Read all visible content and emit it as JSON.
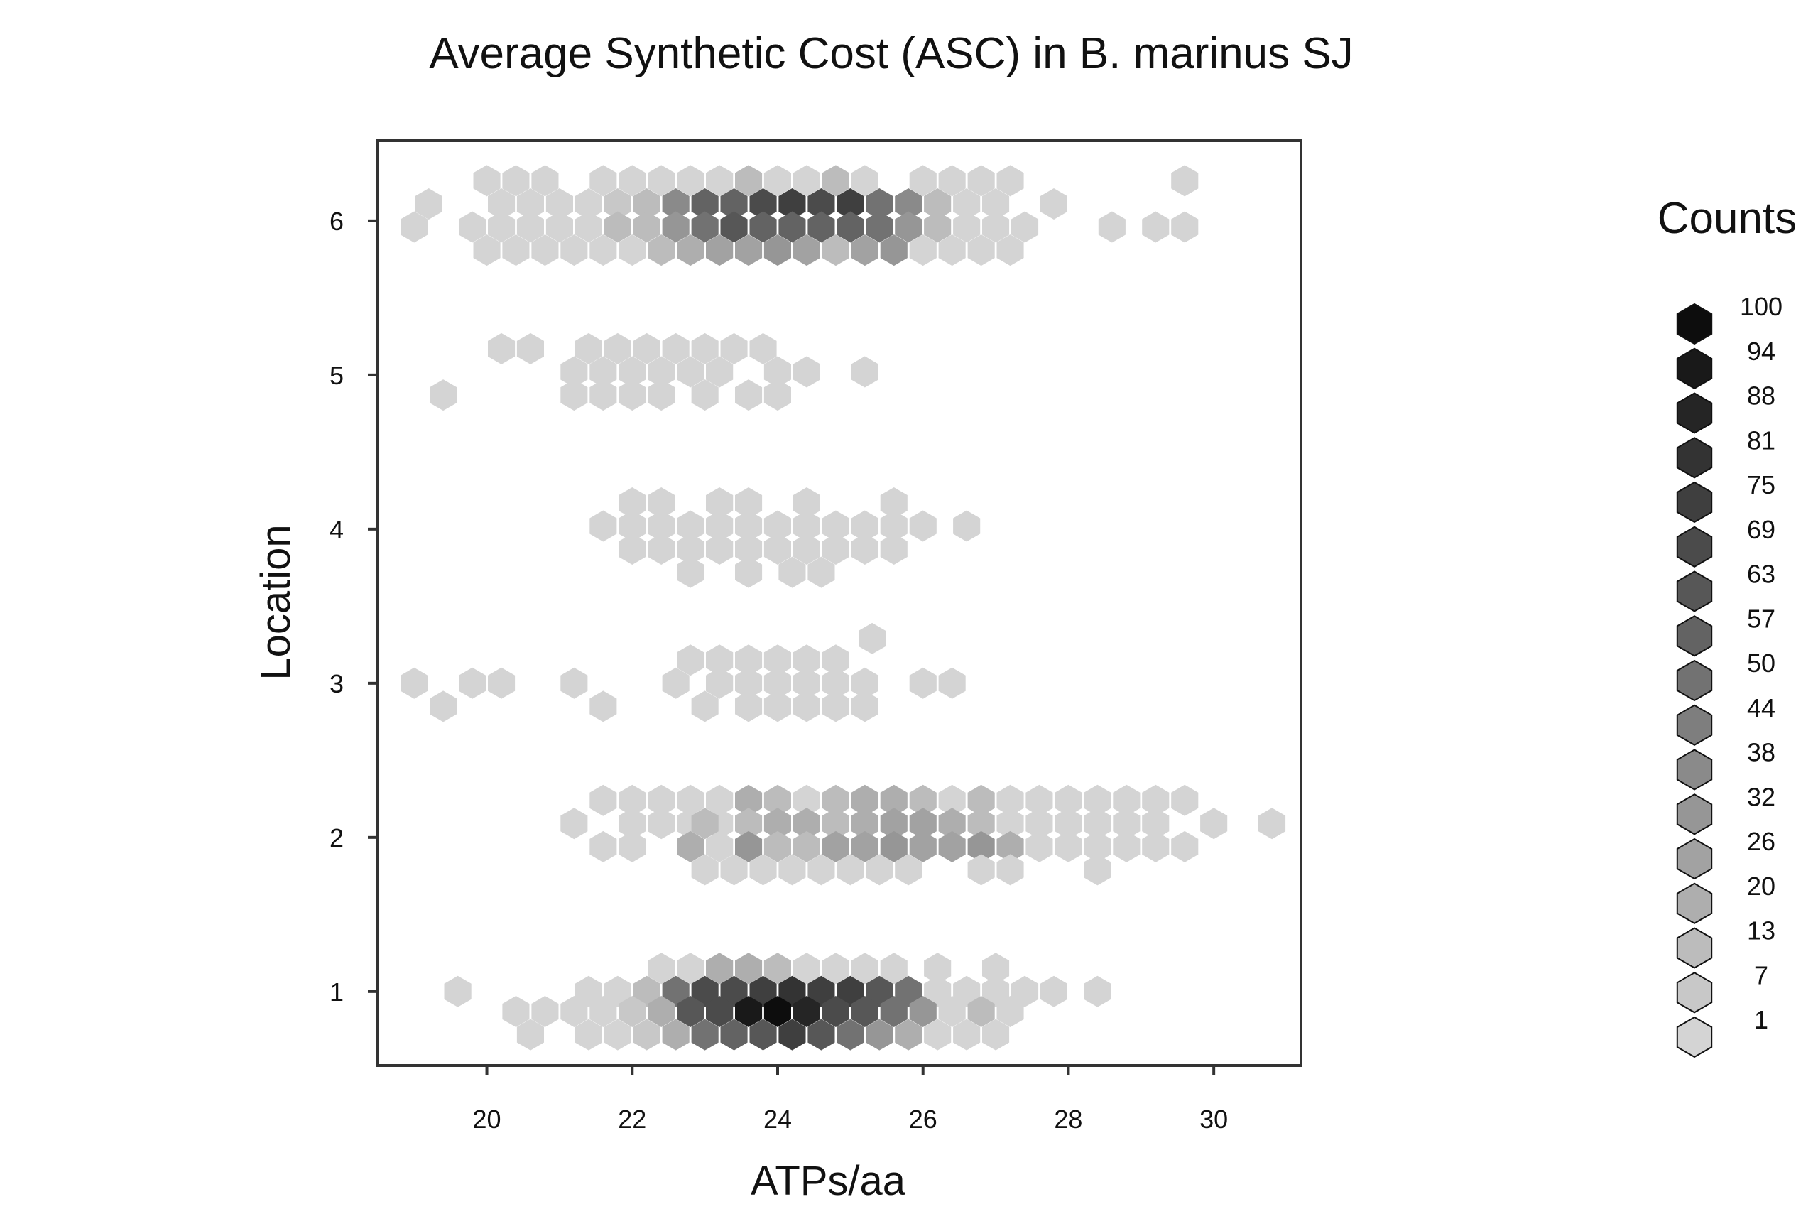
{
  "chart_data": {
    "type": "hexbin",
    "title": "Average Synthetic Cost (ASC) in B. marinus SJ",
    "xlabel": "ATPs/aa",
    "ylabel": "Location",
    "xlim": [
      18.5,
      31.2
    ],
    "ylim": [
      0.52,
      6.52
    ],
    "xticks": [
      "20",
      "22",
      "24",
      "26",
      "28",
      "30"
    ],
    "yticks": [
      "1",
      "2",
      "3",
      "4",
      "5",
      "6"
    ],
    "legend": {
      "title": "Counts",
      "position": "right",
      "levels": [
        "100",
        "94",
        "88",
        "81",
        "75",
        "69",
        "63",
        "57",
        "50",
        "44",
        "38",
        "32",
        "26",
        "20",
        "13",
        "7",
        "1"
      ]
    },
    "colors": {
      "low": "#d4d4d4",
      "high": "#0d0d0d",
      "frame": "#333333"
    },
    "bins": [
      [
        20.0,
        6.26,
        1
      ],
      [
        20.4,
        6.26,
        1
      ],
      [
        20.8,
        6.26,
        1
      ],
      [
        21.6,
        6.26,
        1
      ],
      [
        22.0,
        6.26,
        1
      ],
      [
        22.4,
        6.26,
        1
      ],
      [
        22.8,
        6.26,
        1
      ],
      [
        23.2,
        6.26,
        1
      ],
      [
        23.6,
        6.26,
        13
      ],
      [
        24.0,
        6.26,
        1
      ],
      [
        24.4,
        6.26,
        1
      ],
      [
        24.8,
        6.26,
        13
      ],
      [
        25.2,
        6.26,
        1
      ],
      [
        26.0,
        6.26,
        1
      ],
      [
        26.4,
        6.26,
        1
      ],
      [
        26.8,
        6.26,
        1
      ],
      [
        27.2,
        6.26,
        1
      ],
      [
        29.6,
        6.26,
        1
      ],
      [
        19.2,
        6.11,
        1
      ],
      [
        20.2,
        6.11,
        1
      ],
      [
        20.6,
        6.11,
        1
      ],
      [
        21.0,
        6.11,
        1
      ],
      [
        21.4,
        6.11,
        1
      ],
      [
        21.8,
        6.11,
        7
      ],
      [
        22.2,
        6.11,
        13
      ],
      [
        22.6,
        6.11,
        38
      ],
      [
        23.0,
        6.11,
        57
      ],
      [
        23.4,
        6.11,
        57
      ],
      [
        23.8,
        6.11,
        69
      ],
      [
        24.2,
        6.11,
        75
      ],
      [
        24.6,
        6.11,
        69
      ],
      [
        25.0,
        6.11,
        75
      ],
      [
        25.4,
        6.11,
        50
      ],
      [
        25.8,
        6.11,
        38
      ],
      [
        26.2,
        6.11,
        13
      ],
      [
        26.6,
        6.11,
        1
      ],
      [
        27.0,
        6.11,
        1
      ],
      [
        27.8,
        6.11,
        1
      ],
      [
        19.0,
        5.96,
        1
      ],
      [
        19.8,
        5.96,
        1
      ],
      [
        20.2,
        5.96,
        1
      ],
      [
        20.6,
        5.96,
        1
      ],
      [
        21.0,
        5.96,
        1
      ],
      [
        21.4,
        5.96,
        1
      ],
      [
        21.8,
        5.96,
        13
      ],
      [
        22.2,
        5.96,
        13
      ],
      [
        22.6,
        5.96,
        32
      ],
      [
        23.0,
        5.96,
        50
      ],
      [
        23.4,
        5.96,
        63
      ],
      [
        23.8,
        5.96,
        57
      ],
      [
        24.2,
        5.96,
        57
      ],
      [
        24.6,
        5.96,
        57
      ],
      [
        25.0,
        5.96,
        57
      ],
      [
        25.4,
        5.96,
        50
      ],
      [
        25.8,
        5.96,
        32
      ],
      [
        26.2,
        5.96,
        13
      ],
      [
        26.6,
        5.96,
        1
      ],
      [
        27.0,
        5.96,
        1
      ],
      [
        27.4,
        5.96,
        1
      ],
      [
        28.6,
        5.96,
        1
      ],
      [
        29.2,
        5.96,
        1
      ],
      [
        29.6,
        5.96,
        1
      ],
      [
        20.0,
        5.81,
        1
      ],
      [
        20.4,
        5.81,
        1
      ],
      [
        20.8,
        5.81,
        1
      ],
      [
        21.2,
        5.81,
        1
      ],
      [
        21.6,
        5.81,
        1
      ],
      [
        22.0,
        5.81,
        1
      ],
      [
        22.4,
        5.81,
        13
      ],
      [
        22.8,
        5.81,
        20
      ],
      [
        23.2,
        5.81,
        26
      ],
      [
        23.6,
        5.81,
        26
      ],
      [
        24.0,
        5.81,
        32
      ],
      [
        24.4,
        5.81,
        26
      ],
      [
        24.8,
        5.81,
        13
      ],
      [
        25.2,
        5.81,
        26
      ],
      [
        25.6,
        5.81,
        32
      ],
      [
        26.0,
        5.81,
        1
      ],
      [
        26.4,
        5.81,
        1
      ],
      [
        26.8,
        5.81,
        1
      ],
      [
        27.2,
        5.81,
        1
      ],
      [
        20.2,
        5.17,
        1
      ],
      [
        20.6,
        5.17,
        1
      ],
      [
        21.4,
        5.17,
        1
      ],
      [
        21.8,
        5.17,
        1
      ],
      [
        22.2,
        5.17,
        1
      ],
      [
        22.6,
        5.17,
        1
      ],
      [
        23.0,
        5.17,
        1
      ],
      [
        23.4,
        5.17,
        1
      ],
      [
        23.8,
        5.17,
        1
      ],
      [
        21.2,
        5.02,
        1
      ],
      [
        21.6,
        5.02,
        1
      ],
      [
        22.0,
        5.02,
        1
      ],
      [
        22.4,
        5.02,
        1
      ],
      [
        22.8,
        5.02,
        1
      ],
      [
        23.2,
        5.02,
        1
      ],
      [
        24.0,
        5.02,
        1
      ],
      [
        24.4,
        5.02,
        1
      ],
      [
        25.2,
        5.02,
        1
      ],
      [
        21.2,
        4.87,
        1
      ],
      [
        21.6,
        4.87,
        1
      ],
      [
        22.0,
        4.87,
        1
      ],
      [
        22.4,
        4.87,
        1
      ],
      [
        23.0,
        4.87,
        1
      ],
      [
        23.6,
        4.87,
        1
      ],
      [
        24.0,
        4.87,
        1
      ],
      [
        19.4,
        4.87,
        1
      ],
      [
        22.0,
        4.17,
        1
      ],
      [
        22.4,
        4.17,
        1
      ],
      [
        23.2,
        4.17,
        1
      ],
      [
        23.6,
        4.17,
        1
      ],
      [
        24.4,
        4.17,
        1
      ],
      [
        25.6,
        4.17,
        1
      ],
      [
        21.6,
        4.02,
        1
      ],
      [
        22.0,
        4.02,
        1
      ],
      [
        22.4,
        4.02,
        1
      ],
      [
        22.8,
        4.02,
        1
      ],
      [
        23.2,
        4.02,
        1
      ],
      [
        23.6,
        4.02,
        1
      ],
      [
        24.0,
        4.02,
        1
      ],
      [
        24.4,
        4.02,
        1
      ],
      [
        24.8,
        4.02,
        1
      ],
      [
        25.2,
        4.02,
        1
      ],
      [
        25.6,
        4.02,
        1
      ],
      [
        26.0,
        4.02,
        1
      ],
      [
        26.6,
        4.02,
        1
      ],
      [
        22.0,
        3.87,
        1
      ],
      [
        22.4,
        3.87,
        1
      ],
      [
        22.8,
        3.87,
        1
      ],
      [
        23.2,
        3.87,
        1
      ],
      [
        23.6,
        3.87,
        1
      ],
      [
        24.0,
        3.87,
        1
      ],
      [
        24.4,
        3.87,
        1
      ],
      [
        24.8,
        3.87,
        1
      ],
      [
        25.2,
        3.87,
        1
      ],
      [
        25.6,
        3.87,
        1
      ],
      [
        22.8,
        3.72,
        1
      ],
      [
        23.6,
        3.72,
        1
      ],
      [
        24.2,
        3.72,
        1
      ],
      [
        24.6,
        3.72,
        1
      ],
      [
        25.3,
        3.29,
        1
      ],
      [
        22.8,
        3.15,
        1
      ],
      [
        23.2,
        3.15,
        1
      ],
      [
        23.6,
        3.15,
        1
      ],
      [
        24.0,
        3.15,
        1
      ],
      [
        24.4,
        3.15,
        1
      ],
      [
        24.8,
        3.15,
        1
      ],
      [
        19.0,
        3.0,
        1
      ],
      [
        19.8,
        3.0,
        1
      ],
      [
        20.2,
        3.0,
        1
      ],
      [
        21.2,
        3.0,
        1
      ],
      [
        22.6,
        3.0,
        1
      ],
      [
        23.2,
        3.0,
        1
      ],
      [
        23.6,
        3.0,
        1
      ],
      [
        24.0,
        3.0,
        1
      ],
      [
        24.4,
        3.0,
        1
      ],
      [
        24.8,
        3.0,
        1
      ],
      [
        25.2,
        3.0,
        1
      ],
      [
        26.0,
        3.0,
        1
      ],
      [
        26.4,
        3.0,
        1
      ],
      [
        19.4,
        2.85,
        1
      ],
      [
        21.6,
        2.85,
        1
      ],
      [
        23.0,
        2.85,
        1
      ],
      [
        23.6,
        2.85,
        1
      ],
      [
        24.0,
        2.85,
        1
      ],
      [
        24.4,
        2.85,
        1
      ],
      [
        24.8,
        2.85,
        1
      ],
      [
        25.2,
        2.85,
        1
      ],
      [
        21.6,
        2.24,
        1
      ],
      [
        22.0,
        2.24,
        1
      ],
      [
        22.4,
        2.24,
        1
      ],
      [
        22.8,
        2.24,
        1
      ],
      [
        23.2,
        2.24,
        1
      ],
      [
        23.6,
        2.24,
        20
      ],
      [
        24.0,
        2.24,
        13
      ],
      [
        24.4,
        2.24,
        1
      ],
      [
        24.8,
        2.24,
        13
      ],
      [
        25.2,
        2.24,
        20
      ],
      [
        25.6,
        2.24,
        20
      ],
      [
        26.0,
        2.24,
        13
      ],
      [
        26.4,
        2.24,
        1
      ],
      [
        26.8,
        2.24,
        13
      ],
      [
        27.2,
        2.24,
        1
      ],
      [
        27.6,
        2.24,
        1
      ],
      [
        28.0,
        2.24,
        1
      ],
      [
        28.4,
        2.24,
        1
      ],
      [
        28.8,
        2.24,
        1
      ],
      [
        29.2,
        2.24,
        1
      ],
      [
        29.6,
        2.24,
        1
      ],
      [
        21.2,
        2.09,
        1
      ],
      [
        22.0,
        2.09,
        1
      ],
      [
        22.4,
        2.09,
        1
      ],
      [
        22.8,
        2.09,
        1
      ],
      [
        23.2,
        2.09,
        1
      ],
      [
        23.6,
        2.09,
        13
      ],
      [
        24.0,
        2.09,
        20
      ],
      [
        24.4,
        2.09,
        20
      ],
      [
        24.8,
        2.09,
        13
      ],
      [
        25.2,
        2.09,
        20
      ],
      [
        25.6,
        2.09,
        26
      ],
      [
        26.0,
        2.09,
        26
      ],
      [
        26.4,
        2.09,
        20
      ],
      [
        26.8,
        2.09,
        13
      ],
      [
        27.2,
        2.09,
        1
      ],
      [
        27.6,
        2.09,
        1
      ],
      [
        28.0,
        2.09,
        1
      ],
      [
        28.4,
        2.09,
        1
      ],
      [
        28.8,
        2.09,
        1
      ],
      [
        29.2,
        2.09,
        1
      ],
      [
        30.0,
        2.09,
        1
      ],
      [
        30.8,
        2.09,
        1
      ],
      [
        23.0,
        2.09,
        13
      ],
      [
        21.6,
        1.94,
        1
      ],
      [
        22.0,
        1.94,
        1
      ],
      [
        22.8,
        1.94,
        20
      ],
      [
        23.2,
        1.94,
        1
      ],
      [
        23.6,
        1.94,
        32
      ],
      [
        24.0,
        1.94,
        13
      ],
      [
        24.4,
        1.94,
        13
      ],
      [
        24.8,
        1.94,
        26
      ],
      [
        25.2,
        1.94,
        26
      ],
      [
        25.6,
        1.94,
        32
      ],
      [
        26.0,
        1.94,
        26
      ],
      [
        26.4,
        1.94,
        26
      ],
      [
        26.8,
        1.94,
        32
      ],
      [
        27.2,
        1.94,
        20
      ],
      [
        27.6,
        1.94,
        1
      ],
      [
        28.0,
        1.94,
        1
      ],
      [
        28.4,
        1.94,
        1
      ],
      [
        28.8,
        1.94,
        1
      ],
      [
        29.2,
        1.94,
        1
      ],
      [
        29.6,
        1.94,
        1
      ],
      [
        23.0,
        1.79,
        1
      ],
      [
        23.4,
        1.79,
        1
      ],
      [
        23.8,
        1.79,
        1
      ],
      [
        24.2,
        1.79,
        1
      ],
      [
        24.6,
        1.79,
        1
      ],
      [
        25.0,
        1.79,
        1
      ],
      [
        25.4,
        1.79,
        1
      ],
      [
        25.8,
        1.79,
        1
      ],
      [
        26.8,
        1.79,
        1
      ],
      [
        27.2,
        1.79,
        1
      ],
      [
        28.4,
        1.79,
        1
      ],
      [
        22.4,
        1.15,
        1
      ],
      [
        22.8,
        1.15,
        1
      ],
      [
        23.2,
        1.15,
        20
      ],
      [
        23.6,
        1.15,
        20
      ],
      [
        24.0,
        1.15,
        13
      ],
      [
        24.4,
        1.15,
        1
      ],
      [
        24.8,
        1.15,
        1
      ],
      [
        25.2,
        1.15,
        1
      ],
      [
        25.6,
        1.15,
        1
      ],
      [
        26.2,
        1.15,
        1
      ],
      [
        27.0,
        1.15,
        1
      ],
      [
        19.6,
        1.0,
        1
      ],
      [
        21.4,
        1.0,
        1
      ],
      [
        21.8,
        1.0,
        1
      ],
      [
        22.2,
        1.0,
        13
      ],
      [
        22.6,
        1.0,
        50
      ],
      [
        23.0,
        1.0,
        69
      ],
      [
        23.4,
        1.0,
        69
      ],
      [
        23.8,
        1.0,
        75
      ],
      [
        24.2,
        1.0,
        81
      ],
      [
        24.6,
        1.0,
        75
      ],
      [
        25.0,
        1.0,
        75
      ],
      [
        25.4,
        1.0,
        63
      ],
      [
        25.8,
        1.0,
        50
      ],
      [
        26.2,
        1.0,
        1
      ],
      [
        26.6,
        1.0,
        1
      ],
      [
        27.0,
        1.0,
        1
      ],
      [
        27.4,
        1.0,
        1
      ],
      [
        27.8,
        1.0,
        1
      ],
      [
        28.4,
        1.0,
        1
      ],
      [
        20.4,
        0.87,
        1
      ],
      [
        20.8,
        0.87,
        1
      ],
      [
        21.2,
        0.87,
        1
      ],
      [
        21.6,
        0.87,
        1
      ],
      [
        22.0,
        0.87,
        7
      ],
      [
        22.4,
        0.87,
        20
      ],
      [
        22.8,
        0.87,
        63
      ],
      [
        23.2,
        0.87,
        69
      ],
      [
        23.6,
        0.87,
        94
      ],
      [
        24.0,
        0.87,
        100
      ],
      [
        24.4,
        0.87,
        88
      ],
      [
        24.8,
        0.87,
        69
      ],
      [
        25.2,
        0.87,
        63
      ],
      [
        25.6,
        0.87,
        50
      ],
      [
        26.0,
        0.87,
        32
      ],
      [
        26.4,
        0.87,
        1
      ],
      [
        26.8,
        0.87,
        13
      ],
      [
        27.2,
        0.87,
        1
      ],
      [
        20.6,
        0.72,
        1
      ],
      [
        21.4,
        0.72,
        1
      ],
      [
        21.8,
        0.72,
        1
      ],
      [
        22.2,
        0.72,
        7
      ],
      [
        22.6,
        0.72,
        20
      ],
      [
        23.0,
        0.72,
        50
      ],
      [
        23.4,
        0.72,
        57
      ],
      [
        23.8,
        0.72,
        63
      ],
      [
        24.2,
        0.72,
        75
      ],
      [
        24.6,
        0.72,
        63
      ],
      [
        25.0,
        0.72,
        50
      ],
      [
        25.4,
        0.72,
        32
      ],
      [
        25.8,
        0.72,
        20
      ],
      [
        26.2,
        0.72,
        1
      ],
      [
        26.6,
        0.72,
        1
      ],
      [
        27.0,
        0.72,
        1
      ]
    ]
  }
}
